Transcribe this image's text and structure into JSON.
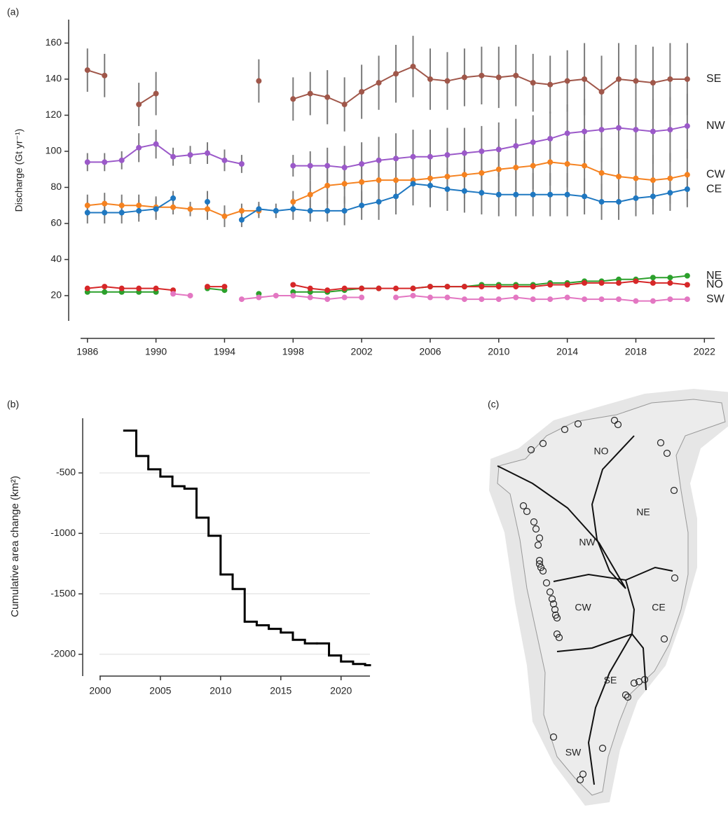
{
  "chart_data": [
    {
      "type": "scatter",
      "panel_label": "(a)",
      "ylabel": "Discharge (Gt yr⁻¹)",
      "x": [
        1986,
        1987,
        1988,
        1989,
        1990,
        1991,
        1992,
        1993,
        1994,
        1995,
        1996,
        1997,
        1998,
        1999,
        2000,
        2001,
        2002,
        2003,
        2004,
        2005,
        2006,
        2007,
        2008,
        2009,
        2010,
        2011,
        2012,
        2013,
        2014,
        2015,
        2016,
        2017,
        2018,
        2019,
        2020,
        2021
      ],
      "xlim": [
        1985.6,
        2022.6
      ],
      "xticks": [
        1986,
        1990,
        1994,
        1998,
        2002,
        2006,
        2010,
        2014,
        2018,
        2022
      ],
      "ylim": [
        6,
        173
      ],
      "yticks": [
        20,
        40,
        60,
        80,
        100,
        120,
        140,
        160
      ],
      "series": [
        {
          "name": "SE",
          "color": "#a0574a",
          "values": [
            145,
            142,
            null,
            126,
            132,
            null,
            null,
            null,
            null,
            null,
            139,
            null,
            129,
            132,
            130,
            126,
            133,
            138,
            143,
            147,
            140,
            139,
            141,
            142,
            141,
            142,
            138,
            137,
            139,
            140,
            133,
            140,
            139,
            138,
            140,
            140
          ],
          "errors": [
            12,
            12,
            null,
            12,
            12,
            null,
            null,
            null,
            null,
            null,
            12,
            null,
            12,
            12,
            15,
            15,
            15,
            15,
            16,
            17,
            17,
            16,
            16,
            16,
            17,
            17,
            16,
            16,
            17,
            20,
            20,
            20,
            20,
            20,
            20,
            20
          ]
        },
        {
          "name": "NW",
          "color": "#9b59c9",
          "values": [
            94,
            94,
            95,
            102,
            104,
            97,
            98,
            99,
            95,
            93,
            null,
            null,
            92,
            92,
            92,
            91,
            93,
            95,
            96,
            97,
            97,
            98,
            99,
            100,
            101,
            103,
            105,
            107,
            110,
            111,
            112,
            113,
            112,
            111,
            112,
            114
          ],
          "errors": [
            5,
            5,
            5,
            8,
            8,
            5,
            5,
            6,
            6,
            5,
            null,
            null,
            6,
            8,
            10,
            12,
            12,
            13,
            14,
            15,
            15,
            15,
            14,
            14,
            15,
            15,
            15,
            15,
            16,
            18,
            18,
            18,
            18,
            18,
            18,
            18
          ]
        },
        {
          "name": "CW",
          "color": "#f58220",
          "values": [
            70,
            71,
            70,
            70,
            69,
            69,
            68,
            68,
            64,
            67,
            67,
            null,
            72,
            76,
            81,
            82,
            83,
            84,
            84,
            84,
            85,
            86,
            87,
            88,
            90,
            91,
            92,
            94,
            93,
            92,
            88,
            86,
            85,
            84,
            85,
            87
          ],
          "errors": [
            6,
            6,
            6,
            6,
            6,
            4,
            4,
            6,
            6,
            4,
            4,
            null,
            6,
            8,
            10,
            11,
            12,
            12,
            12,
            13,
            13,
            13,
            13,
            13,
            13,
            13,
            13,
            13,
            13,
            14,
            14,
            14,
            14,
            14,
            14,
            14
          ]
        },
        {
          "name": "CE",
          "color": "#1f78c1",
          "values": [
            66,
            66,
            66,
            67,
            68,
            74,
            null,
            72,
            null,
            62,
            68,
            67,
            68,
            67,
            67,
            67,
            70,
            72,
            75,
            82,
            81,
            79,
            78,
            77,
            76,
            76,
            76,
            76,
            76,
            75,
            72,
            72,
            74,
            75,
            77,
            79
          ],
          "errors": [
            6,
            6,
            6,
            6,
            6,
            4,
            null,
            6,
            null,
            4,
            4,
            4,
            6,
            6,
            6,
            8,
            8,
            10,
            10,
            12,
            12,
            12,
            12,
            12,
            12,
            12,
            12,
            12,
            12,
            10,
            10,
            10,
            10,
            10,
            10,
            10
          ]
        },
        {
          "name": "NE",
          "color": "#2ca02c",
          "values": [
            22,
            22,
            22,
            22,
            22,
            null,
            null,
            24,
            23,
            null,
            21,
            null,
            22,
            22,
            22,
            23,
            24,
            24,
            null,
            24,
            25,
            25,
            25,
            26,
            26,
            26,
            26,
            27,
            27,
            28,
            28,
            29,
            29,
            30,
            30,
            31
          ]
        },
        {
          "name": "NO",
          "color": "#d62728",
          "values": [
            24,
            25,
            24,
            24,
            24,
            23,
            null,
            25,
            25,
            null,
            null,
            null,
            26,
            24,
            23,
            24,
            24,
            24,
            24,
            24,
            25,
            25,
            25,
            25,
            25,
            25,
            25,
            26,
            26,
            27,
            27,
            27,
            28,
            27,
            27,
            26
          ]
        },
        {
          "name": "SW",
          "color": "#e377c2",
          "values": [
            null,
            null,
            null,
            null,
            null,
            21,
            20,
            null,
            null,
            18,
            19,
            20,
            20,
            19,
            18,
            19,
            19,
            null,
            19,
            20,
            19,
            19,
            18,
            18,
            18,
            19,
            18,
            18,
            19,
            18,
            18,
            18,
            17,
            17,
            18,
            18
          ]
        }
      ]
    },
    {
      "type": "step",
      "panel_label": "(b)",
      "ylabel": "Cumulative area change (km²)",
      "color": "#000000",
      "grid": true,
      "x": [
        2002,
        2003,
        2004,
        2005,
        2006,
        2007,
        2008,
        2009,
        2010,
        2011,
        2012,
        2013,
        2014,
        2015,
        2016,
        2017,
        2018,
        2019,
        2020,
        2021,
        2022
      ],
      "values": [
        -150,
        -360,
        -470,
        -530,
        -610,
        -630,
        -870,
        -1020,
        -1340,
        -1460,
        -1730,
        -1760,
        -1790,
        -1820,
        -1880,
        -1910,
        -1910,
        -2010,
        -2060,
        -2080,
        -2090
      ],
      "xlim": [
        1998.55,
        2022.4
      ],
      "xticks": [
        2000,
        2005,
        2010,
        2015,
        2020
      ],
      "ylim": [
        -2180,
        -48
      ],
      "yticks": [
        -500,
        -1000,
        -1500,
        -2000
      ]
    },
    {
      "type": "map",
      "panel_label": "(c)",
      "labels": [
        "NO",
        "NE",
        "NW",
        "CW",
        "CE",
        "SE",
        "SW"
      ]
    }
  ]
}
